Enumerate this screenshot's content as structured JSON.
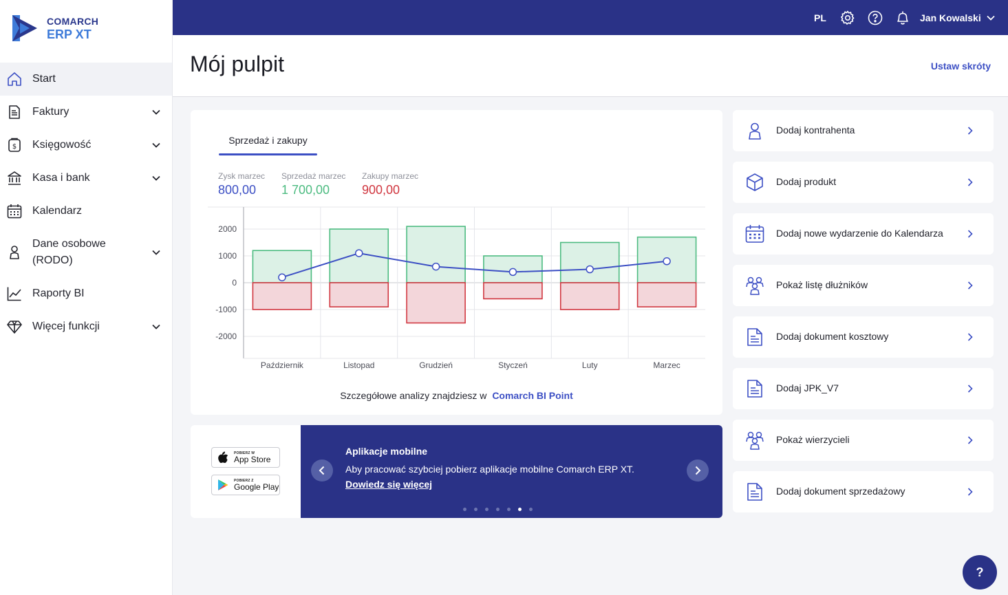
{
  "brand": {
    "line1": "COMARCH",
    "line2": "ERP XT",
    "color_dark": "#2a378c",
    "color_light": "#3e7bd9"
  },
  "sidebar": {
    "items": [
      {
        "label": "Start",
        "icon": "home-icon",
        "expandable": false,
        "active": true
      },
      {
        "label": "Faktury",
        "icon": "invoice-icon",
        "expandable": true
      },
      {
        "label": "Księgowość",
        "icon": "accounting-icon",
        "expandable": true
      },
      {
        "label": "Kasa i bank",
        "icon": "bank-icon",
        "expandable": true
      },
      {
        "label": "Kalendarz",
        "icon": "calendar-icon",
        "expandable": false
      },
      {
        "label": "Dane osobowe",
        "label2": "(RODO)",
        "icon": "person-icon",
        "expandable": true
      },
      {
        "label": "Raporty BI",
        "icon": "chart-line-icon",
        "expandable": false
      },
      {
        "label": "Więcej funkcji",
        "icon": "diamond-icon",
        "expandable": true
      }
    ]
  },
  "topbar": {
    "lang": "PL",
    "user": "Jan Kowalski",
    "bg": "#2a3287"
  },
  "page": {
    "title": "Mój pulpit",
    "shortcuts_link": "Ustaw skróty"
  },
  "chart_card": {
    "tab": "Sprzedaż i zakupy",
    "kpis": [
      {
        "label": "Zysk marzec",
        "value": "800,00",
        "color": "#3c4fc4"
      },
      {
        "label": "Sprzedaż marzec",
        "value": "1 700,00",
        "color": "#4cbb80"
      },
      {
        "label": "Zakupy marzec",
        "value": "900,00",
        "color": "#d0363f"
      }
    ],
    "bi_text": "Szczegółowe analizy znajdziesz w",
    "bi_link": "Comarch BI Point"
  },
  "chart_data": {
    "type": "bar",
    "categories": [
      "Październik",
      "Listopad",
      "Grudzień",
      "Styczeń",
      "Luty",
      "Marzec"
    ],
    "series": [
      {
        "values": [
          1200,
          2000,
          2100,
          1000,
          1500,
          1700
        ],
        "color": "#4cbb80",
        "kind": "bar"
      },
      {
        "values": [
          -1000,
          -900,
          -1500,
          -600,
          -1000,
          -900
        ],
        "color": "#d0363f",
        "kind": "bar"
      },
      {
        "values": [
          200,
          1100,
          600,
          400,
          500,
          800
        ],
        "color": "#3c4fc4",
        "kind": "line"
      }
    ],
    "yticks": [
      2000,
      1000,
      0,
      -1000,
      -2000
    ],
    "ytick_labels": [
      "2000",
      "1000",
      "0",
      "-1000",
      "-2000"
    ],
    "ylim": [
      -3000,
      2800
    ],
    "grid": true
  },
  "mobile": {
    "appstore_small": "POBIERZ W",
    "appstore_big": "App Store",
    "gplay_small": "POBIERZ Z",
    "gplay_big": "Google Play",
    "title": "Aplikacje mobilne",
    "desc": "Aby pracować szybciej pobierz aplikacje mobilne Comarch ERP XT.",
    "link": "Dowiedz się więcej",
    "slides": 7,
    "active_slide": 6
  },
  "shortcuts": [
    {
      "label": "Dodaj kontrahenta",
      "icon": "user-icon"
    },
    {
      "label": "Dodaj produkt",
      "icon": "box-icon"
    },
    {
      "label": "Dodaj nowe wydarzenie do Kalendarza",
      "icon": "calendar-icon"
    },
    {
      "label": "Pokaż listę dłużników",
      "icon": "people-icon"
    },
    {
      "label": "Dodaj dokument kosztowy",
      "icon": "document-icon"
    },
    {
      "label": "Dodaj JPK_V7",
      "icon": "document-icon"
    },
    {
      "label": "Pokaż wierzycieli",
      "icon": "people-icon"
    },
    {
      "label": "Dodaj dokument sprzedażowy",
      "icon": "document-icon"
    }
  ],
  "help_fab": "?"
}
